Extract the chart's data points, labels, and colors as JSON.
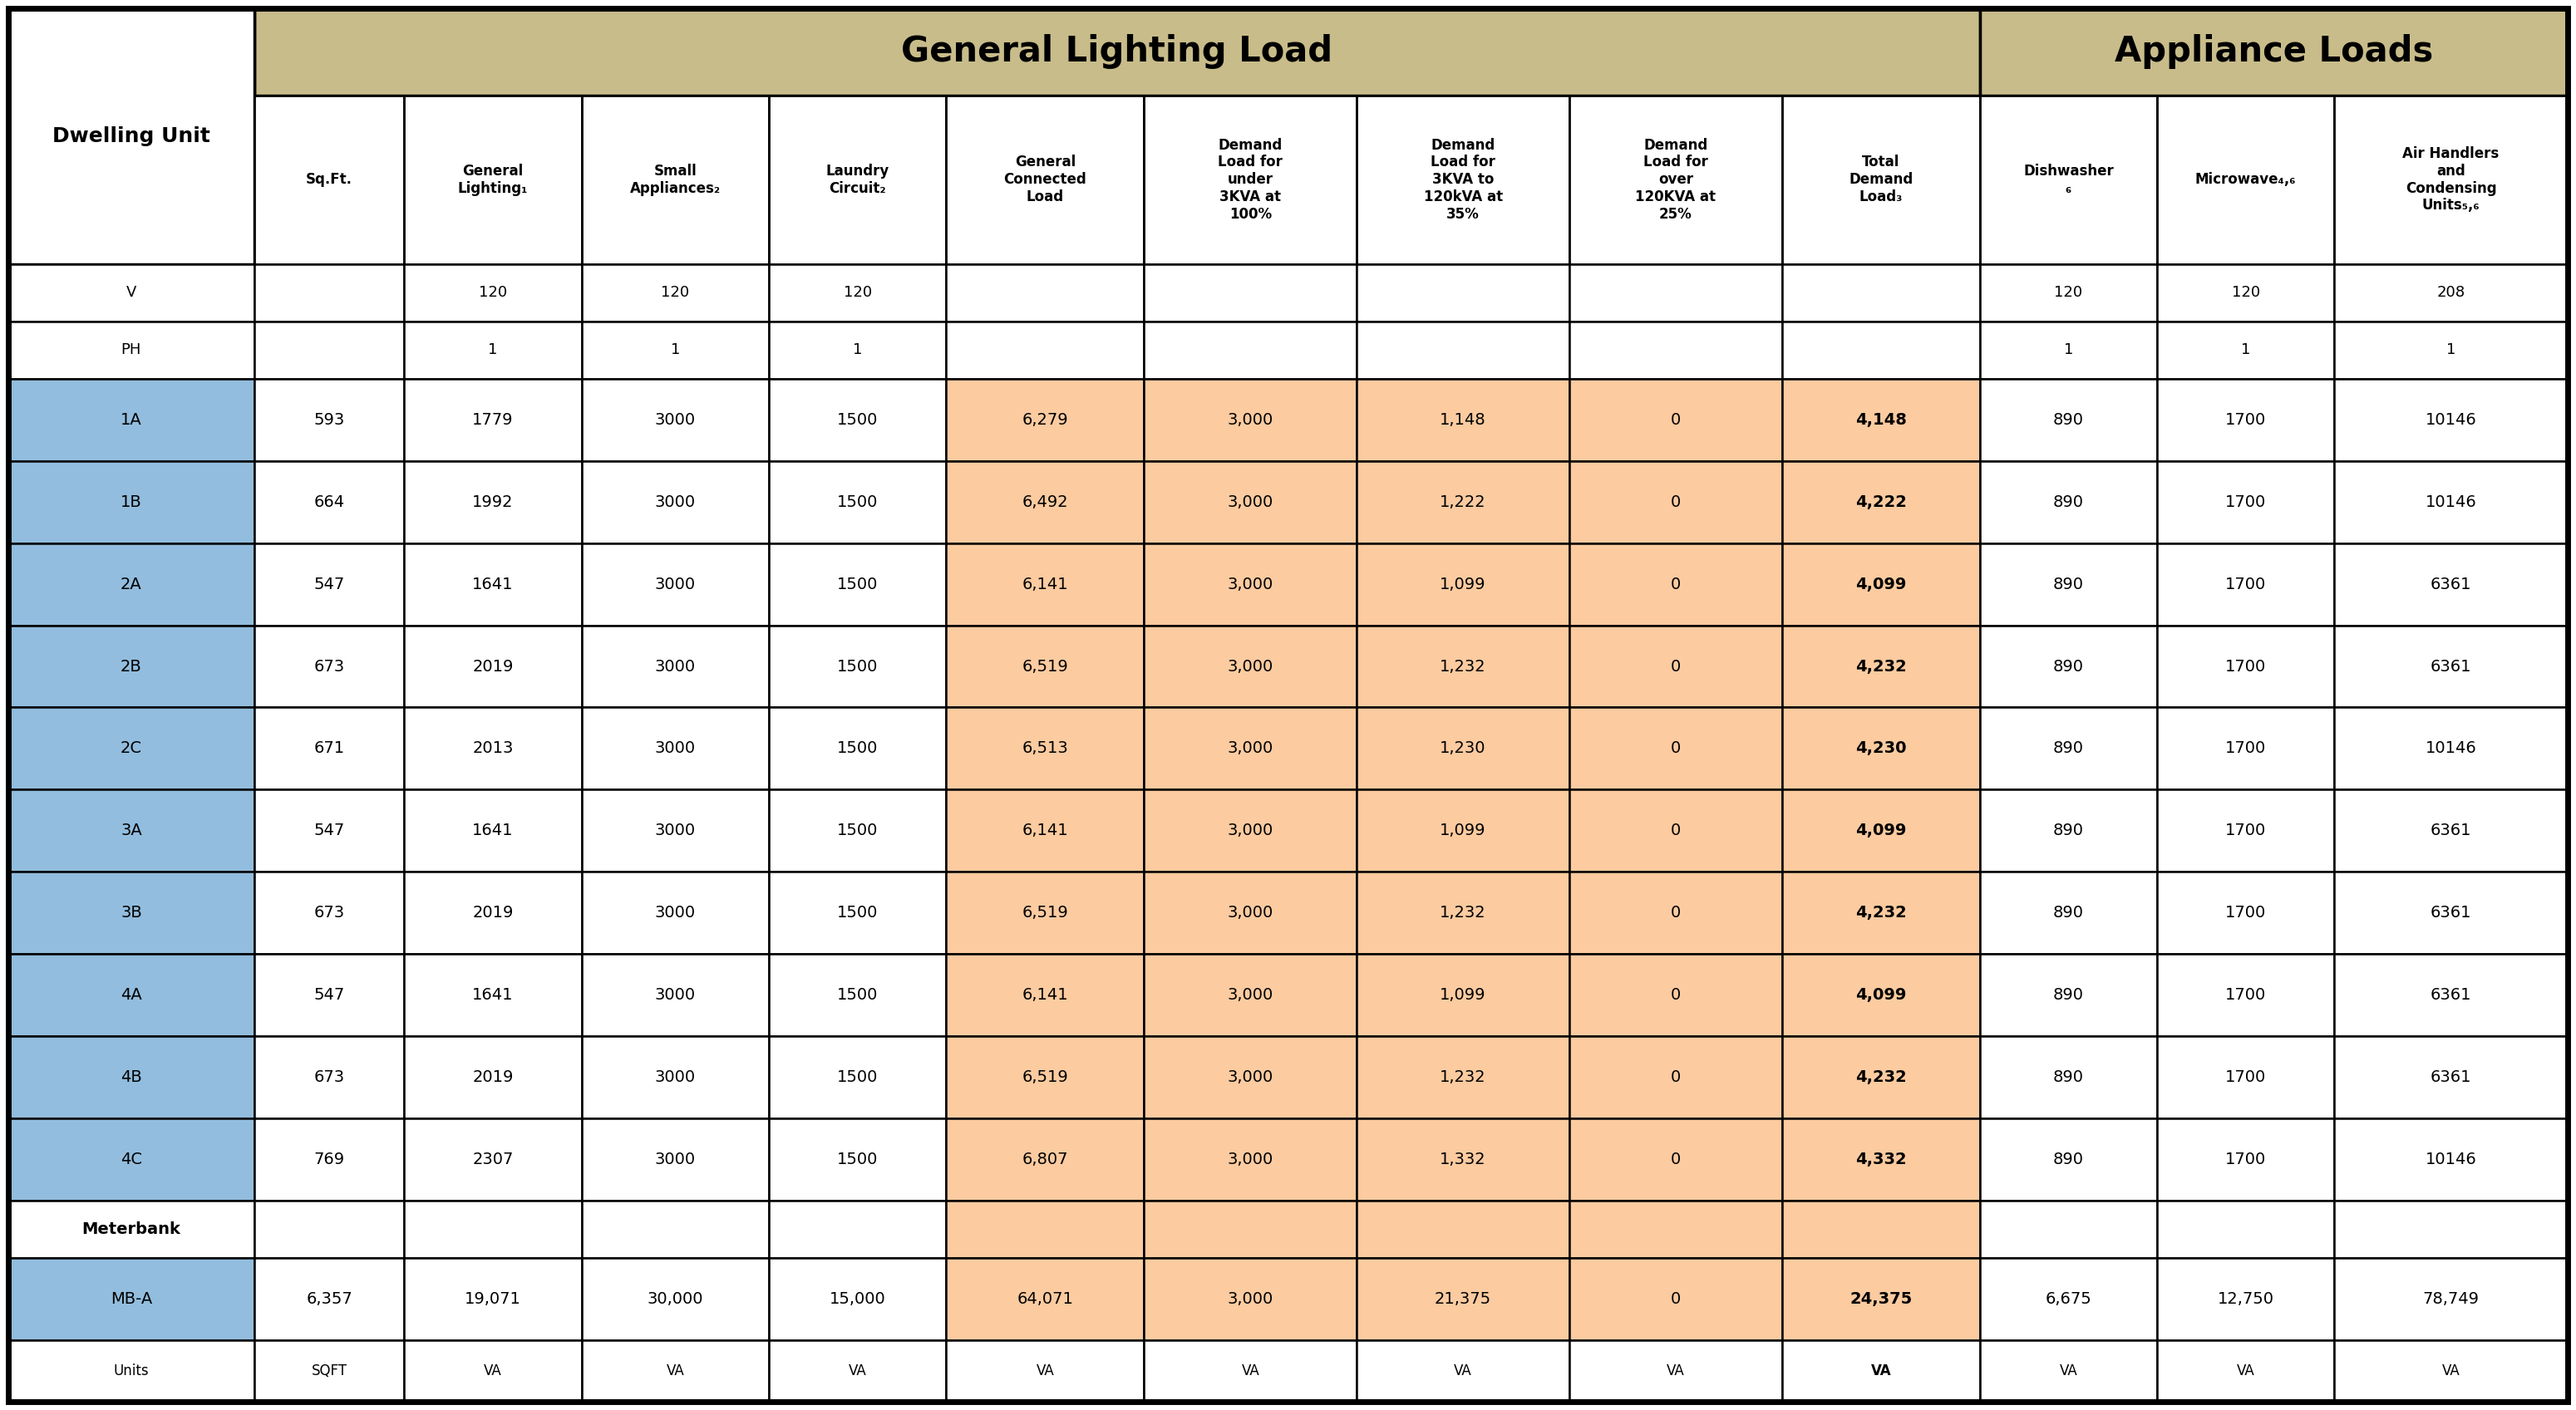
{
  "header1_text": "General Lighting Load",
  "header2_text": "Appliance Loads",
  "header1_color": "#C8BC8A",
  "header2_color": "#C8BC8A",
  "row_blue": "#92BDDE",
  "row_peach": "#FCCBA0",
  "col_headers": [
    "Dwelling\nUnit",
    "Sq.Ft.",
    "General\nLighting₁",
    "Small\nAppliances₂",
    "Laundry\nCircuit₂",
    "General\nConnected\nLoad",
    "Demand\nLoad for\nunder\n3KVA at\n100%",
    "Demand\nLoad for\n3KVA to\n120kVA at\n35%",
    "Demand\nLoad for\nover\n120KVA at\n25%",
    "Total\nDemand\nLoad₃",
    "Dishwasher\n₆",
    "Microwave₄,₆",
    "Air Handlers\nand\nCondensing\nUnits₅,₆"
  ],
  "v_row": [
    "V",
    "",
    "120",
    "120",
    "120",
    "",
    "",
    "",
    "",
    "",
    "120",
    "120",
    "208"
  ],
  "ph_row": [
    "PH",
    "",
    "1",
    "1",
    "1",
    "",
    "",
    "",
    "",
    "",
    "1",
    "1",
    "1"
  ],
  "data_rows": [
    [
      "1A",
      "593",
      "1779",
      "3000",
      "1500",
      "6,279",
      "3,000",
      "1,148",
      "0",
      "4,148",
      "890",
      "1700",
      "10146"
    ],
    [
      "1B",
      "664",
      "1992",
      "3000",
      "1500",
      "6,492",
      "3,000",
      "1,222",
      "0",
      "4,222",
      "890",
      "1700",
      "10146"
    ],
    [
      "2A",
      "547",
      "1641",
      "3000",
      "1500",
      "6,141",
      "3,000",
      "1,099",
      "0",
      "4,099",
      "890",
      "1700",
      "6361"
    ],
    [
      "2B",
      "673",
      "2019",
      "3000",
      "1500",
      "6,519",
      "3,000",
      "1,232",
      "0",
      "4,232",
      "890",
      "1700",
      "6361"
    ],
    [
      "2C",
      "671",
      "2013",
      "3000",
      "1500",
      "6,513",
      "3,000",
      "1,230",
      "0",
      "4,230",
      "890",
      "1700",
      "10146"
    ],
    [
      "3A",
      "547",
      "1641",
      "3000",
      "1500",
      "6,141",
      "3,000",
      "1,099",
      "0",
      "4,099",
      "890",
      "1700",
      "6361"
    ],
    [
      "3B",
      "673",
      "2019",
      "3000",
      "1500",
      "6,519",
      "3,000",
      "1,232",
      "0",
      "4,232",
      "890",
      "1700",
      "6361"
    ],
    [
      "4A",
      "547",
      "1641",
      "3000",
      "1500",
      "6,141",
      "3,000",
      "1,099",
      "0",
      "4,099",
      "890",
      "1700",
      "6361"
    ],
    [
      "4B",
      "673",
      "2019",
      "3000",
      "1500",
      "6,519",
      "3,000",
      "1,232",
      "0",
      "4,232",
      "890",
      "1700",
      "6361"
    ],
    [
      "4C",
      "769",
      "2307",
      "3000",
      "1500",
      "6,807",
      "3,000",
      "1,332",
      "0",
      "4,332",
      "890",
      "1700",
      "10146"
    ]
  ],
  "meterbank_row": [
    "Meterbank",
    "",
    "",
    "",
    "",
    "",
    "",
    "",
    "",
    "",
    "",
    "",
    ""
  ],
  "mba_row": [
    "MB-A",
    "6,357",
    "19,071",
    "30,000",
    "15,000",
    "64,071",
    "3,000",
    "21,375",
    "0",
    "24,375",
    "6,675",
    "12,750",
    "78,749"
  ],
  "units_row": [
    "Units",
    "SQFT",
    "VA",
    "VA",
    "VA",
    "VA",
    "VA",
    "VA",
    "VA",
    "VA",
    "VA",
    "VA",
    "VA"
  ],
  "col_weights": [
    1.18,
    0.72,
    0.85,
    0.9,
    0.85,
    0.95,
    1.02,
    1.02,
    1.02,
    0.95,
    0.85,
    0.85,
    1.12
  ],
  "row_heights_raw": [
    88,
    170,
    58,
    58,
    83,
    83,
    83,
    83,
    83,
    83,
    83,
    83,
    83,
    83,
    58,
    83,
    62
  ]
}
